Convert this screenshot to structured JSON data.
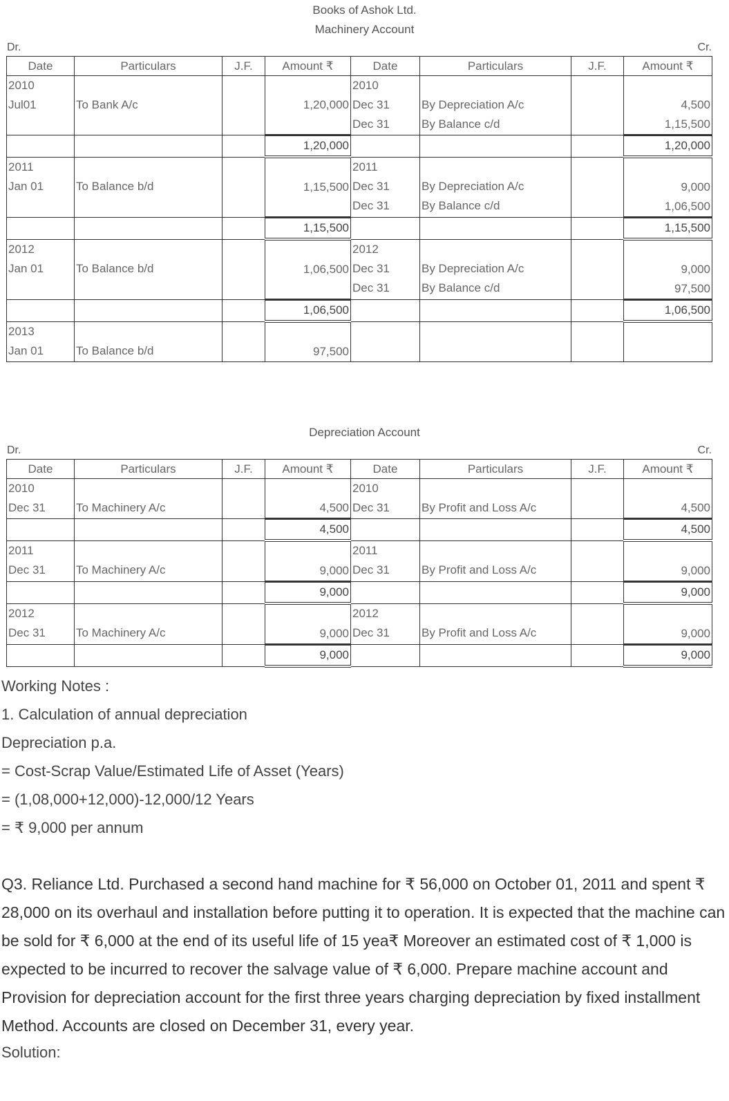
{
  "heading": {
    "company": "Books of Ashok Ltd.",
    "machinery_title": "Machinery Account",
    "depreciation_title": "Depreciation Account",
    "dr": "Dr.",
    "cr": "Cr."
  },
  "columns": [
    "Date",
    "Particulars",
    "J.F.",
    "Amount ₹",
    "Date",
    "Particulars",
    "J.F.",
    "Amount ₹"
  ],
  "machinery": [
    {
      "type": "entry",
      "cells": [
        "2010\nJul01",
        "\nTo Bank A/c",
        "",
        "\n1,20,000",
        "2010\nDec 31\nDec 31",
        "\nBy Depreciation A/c\nBy Balance c/d",
        "",
        "\n4,500\n1,15,500"
      ]
    },
    {
      "type": "total",
      "cells": [
        "",
        "",
        "",
        "1,20,000",
        "",
        "",
        "",
        "1,20,000"
      ]
    },
    {
      "type": "entry",
      "cells": [
        "2011\nJan 01",
        "\nTo Balance b/d",
        "",
        "\n1,15,500",
        "2011\nDec 31\nDec 31",
        "\nBy Depreciation A/c\nBy Balance c/d",
        "",
        "\n9,000\n1,06,500"
      ]
    },
    {
      "type": "total",
      "cells": [
        "",
        "",
        "",
        "1,15,500",
        "",
        "",
        "",
        "1,15,500"
      ]
    },
    {
      "type": "entry",
      "cells": [
        "2012\nJan 01",
        "\nTo Balance b/d",
        "",
        "\n1,06,500",
        "2012\nDec 31\nDec 31",
        "\nBy Depreciation A/c\nBy Balance c/d",
        "",
        "\n9,000\n97,500"
      ]
    },
    {
      "type": "total",
      "cells": [
        "",
        "",
        "",
        "1,06,500",
        "",
        "",
        "",
        "1,06,500"
      ]
    },
    {
      "type": "entry",
      "cells": [
        "2013\nJan 01",
        "\nTo Balance b/d",
        "",
        "\n97,500",
        "",
        "",
        "",
        ""
      ]
    }
  ],
  "depreciation": [
    {
      "type": "entry",
      "cells": [
        "2010\nDec 31",
        "\nTo Machinery A/c",
        "",
        "\n4,500",
        "2010\nDec 31",
        "\nBy Profit and Loss A/c",
        "",
        "\n4,500"
      ]
    },
    {
      "type": "total",
      "cells": [
        "",
        "",
        "",
        "4,500",
        "",
        "",
        "",
        "4,500"
      ]
    },
    {
      "type": "entry",
      "cells": [
        "2011\nDec 31",
        "\nTo Machinery A/c",
        "",
        "\n9,000",
        "2011\nDec 31",
        "\nBy Profit and Loss A/c",
        "",
        "\n9,000"
      ]
    },
    {
      "type": "total",
      "cells": [
        "",
        "",
        "",
        "9,000",
        "",
        "",
        "",
        "9,000"
      ]
    },
    {
      "type": "entry",
      "cells": [
        "2012\nDec 31",
        "\nTo Machinery A/c",
        "",
        "\n9,000",
        "2012\nDec 31",
        "\nBy Profit and Loss A/c",
        "",
        "\n9,000"
      ]
    },
    {
      "type": "total",
      "cells": [
        "",
        "",
        "",
        "9,000",
        "",
        "",
        "",
        "9,000"
      ]
    }
  ],
  "notes": [
    "Working Notes :",
    "1. Calculation of annual depreciation",
    "Depreciation p.a.",
    "= Cost-Scrap Value/Estimated Life of Asset (Years)",
    "= (1,08,000+12,000)-12,000/12 Years",
    "= ₹ 9,000 per annum"
  ],
  "question": "Q3. Reliance Ltd. Purchased a second hand machine for ₹ 56,000 on October 01, 2011 and spent ₹ 28,000 on its overhaul and installation before putting it to operation. It is expected that the machine can be sold for ₹ 6,000 at the end of its useful life of 15 yea₹ Moreover an estimated cost of ₹ 1,000 is expected to be incurred to recover the salvage value of ₹ 6,000. Prepare machine account and Provision for depreciation account for the first three years charging depreciation by fixed installment Method. Accounts are closed on December 31, every year.",
  "solution_label": "Solution:"
}
